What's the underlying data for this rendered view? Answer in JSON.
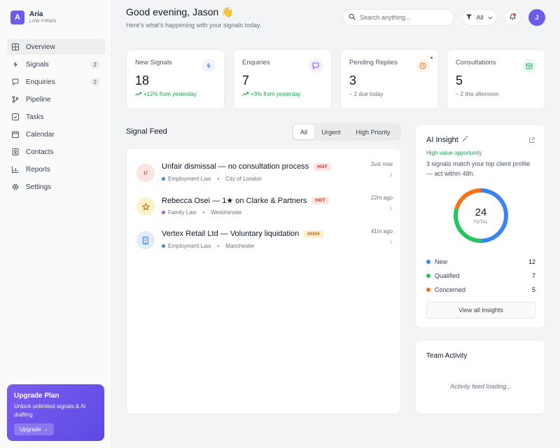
{
  "brand": {
    "initial": "A",
    "name": "Aria",
    "sub": "LAW FIRMS"
  },
  "nav": [
    {
      "label": "Overview",
      "count": "",
      "icon": "grid-icon",
      "active": true
    },
    {
      "label": "Signals",
      "count": "2",
      "icon": "bolt-icon"
    },
    {
      "label": "Enquiries",
      "count": "2",
      "icon": "chat-icon"
    },
    {
      "label": "Pipeline",
      "count": "",
      "icon": "branch-icon"
    },
    {
      "label": "Tasks",
      "count": "",
      "icon": "checkbox-icon"
    },
    {
      "label": "Calendar",
      "count": "",
      "icon": "calendar-icon"
    },
    {
      "label": "Contacts",
      "count": "",
      "icon": "contacts-icon"
    },
    {
      "label": "Reports",
      "count": "",
      "icon": "chart-icon"
    },
    {
      "label": "Settings",
      "count": "",
      "icon": "gear-icon"
    }
  ],
  "upgrade": {
    "title": "Upgrade Plan",
    "text": "Unlock unlimited signals & AI drafting",
    "button": "Upgrade →"
  },
  "header": {
    "greeting": "Good evening, Jason 👋",
    "subtitle": "Here's what's happening with your signals today.",
    "search_placeholder": "Search anything...",
    "filter_label": "All",
    "avatar_initial": "J"
  },
  "stats": [
    {
      "label": "New Signals",
      "value": "18",
      "delta": "+12% from yesterday",
      "trend": "up",
      "icon": "bolt-icon",
      "accent": "#3b82f6"
    },
    {
      "label": "Enquiries",
      "value": "7",
      "delta": "+3% from yesterday",
      "trend": "up",
      "icon": "chat-icon",
      "accent": "#8b5cf6"
    },
    {
      "label": "Pending Replies",
      "value": "3",
      "delta": "– 2 due today",
      "trend": "flat",
      "icon": "clock-icon",
      "accent": "#f97316"
    },
    {
      "label": "Consultations",
      "value": "5",
      "delta": "– 2 this afternoon",
      "trend": "flat",
      "icon": "calendar-icon",
      "accent": "#22c55e"
    }
  ],
  "feed": {
    "title": "Signal Feed",
    "tabs": [
      "All",
      "Urgent",
      "High Priority"
    ],
    "items": [
      {
        "avatar": "r/",
        "title": "Unfair dismissal — no consultation process",
        "badge": "HOT",
        "badge_type": "hot",
        "category": "Employment Law",
        "category_color": "#3b82f6",
        "location": "City of London",
        "time": "Just now"
      },
      {
        "avatar": "star-icon",
        "title": "Rebecca Osei — 1★ on Clarke & Partners",
        "badge": "HOT",
        "badge_type": "hot",
        "category": "Family Law",
        "category_color": "#a855f7",
        "location": "Westminster",
        "time": "22m ago"
      },
      {
        "avatar": "building-icon",
        "title": "Vertex Retail Ltd — Voluntary liquidation",
        "badge": "HIGH",
        "badge_type": "high",
        "category": "Employment Law",
        "category_color": "#3b82f6",
        "location": "Manchester",
        "time": "41m ago"
      }
    ]
  },
  "insight": {
    "title": "AI Insight",
    "tag": "High value opportunity",
    "text": "3 signals match your top client profile — act within 48h.",
    "total": "24",
    "total_label": "TOTAL",
    "legend": [
      {
        "name": "New",
        "value": 12,
        "color": "#3b82f6"
      },
      {
        "name": "Qualified",
        "value": 7,
        "color": "#22c55e"
      },
      {
        "name": "Concerned",
        "value": 5,
        "color": "#f97316"
      }
    ],
    "button": "View all insights"
  },
  "team": {
    "title": "Team Activity",
    "loading": "Activity feed loading..."
  }
}
